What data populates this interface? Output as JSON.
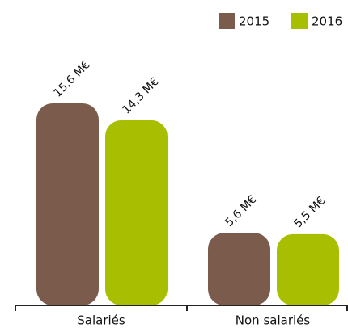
{
  "chart_data": {
    "type": "bar",
    "categories": [
      "Salariés",
      "Non salariés"
    ],
    "series": [
      {
        "name": "2015",
        "color": "#7b5b4b",
        "values": [
          15.6,
          5.6
        ],
        "value_labels": [
          "15,6 M€",
          "5,6 M€"
        ]
      },
      {
        "name": "2016",
        "color": "#a8be00",
        "values": [
          14.3,
          5.5
        ],
        "value_labels": [
          "14,3 M€",
          "5,5 M€"
        ]
      }
    ],
    "legend": "top-right"
  }
}
